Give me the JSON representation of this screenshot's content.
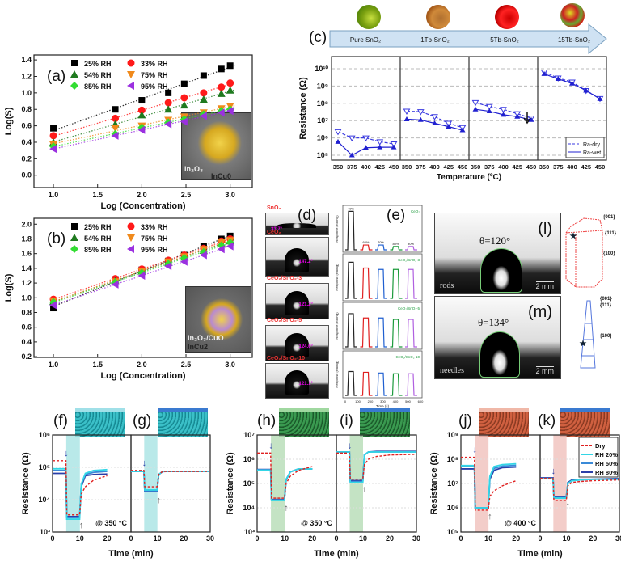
{
  "panels": {
    "a": "(a)",
    "b": "(b)",
    "c": "(c)",
    "d": "(d)",
    "e": "(e)",
    "f": "(f)",
    "g": "(g)",
    "h": "(h)",
    "i": "(i)",
    "j": "(j)",
    "k": "(k)",
    "l": "(l)",
    "m": "(m)"
  },
  "insets": {
    "a": {
      "material": "In₂O₃",
      "name": "InCu0"
    },
    "b": {
      "material": "In₂O₃/CuO",
      "name": "InCu2"
    }
  },
  "arrow_stages": [
    "Pure SnO₂",
    "1Tb-SnO₂",
    "5Tb-SnO₂",
    "15Tb-SnO₂"
  ],
  "stage_colors": [
    "#9cc21a",
    "#c87a2a",
    "#e01010",
    "#d8c020"
  ],
  "contact_angle_d": {
    "samples": [
      {
        "label": "SnO₂",
        "angle": "33.7°"
      },
      {
        "label": "CeO₂",
        "angle": "147.2°"
      },
      {
        "label": "CeO₂/SnO₂-3",
        "angle": "121.2°"
      },
      {
        "label": "CeO₂/SnO₂-5",
        "angle": "124.6°"
      },
      {
        "label": "CeO₂/SnO₂-10",
        "angle": "121.1°"
      }
    ]
  },
  "panel_e": {
    "ylabel": "Response (Ra/Rg)",
    "xlabel": "Time (s)",
    "x_ticks": [
      "0",
      "100",
      "200",
      "300",
      "400",
      "500",
      "600"
    ],
    "rh_labels": [
      "40%",
      "60%",
      "70%",
      "80%",
      "90%"
    ],
    "pulse_colors": [
      "#222222",
      "#e02020",
      "#1f5fd0",
      "#1a9a3a",
      "#b060e0"
    ],
    "subplots": [
      {
        "label": "CeO₂",
        "pulses": [
          40,
          5,
          5,
          3.5,
          3.5
        ]
      },
      {
        "label": "CeO₂/SnO₂-3",
        "pulses": [
          25,
          21,
          20,
          20,
          20
        ]
      },
      {
        "label": "CeO₂/SnO₂-5",
        "pulses": [
          23,
          20,
          20,
          19,
          19
        ]
      },
      {
        "label": "CeO₂/SnO₂-10",
        "pulses": [
          16.5,
          16,
          15.5,
          15,
          15
        ]
      }
    ]
  },
  "wetting": {
    "l": {
      "theta": "θ=120°",
      "caption": "rods",
      "scale": "2 mm"
    },
    "m": {
      "theta": "θ=134°",
      "caption": "needles",
      "scale": "2 mm"
    },
    "facets": [
      "{001}",
      "{111}",
      "{100}"
    ]
  },
  "temperature_labels": {
    "f": "@ 350 °C",
    "h": "@ 350 °C",
    "j": "@ 400 °C"
  },
  "chart_data": [
    {
      "id": "a",
      "type": "scatter",
      "xlabel": "Log (Concentration)",
      "ylabel": "Log(S)",
      "xlim": [
        0.78,
        3.25
      ],
      "ylim": [
        -0.15,
        1.46
      ],
      "x_ticks": [
        1.0,
        1.5,
        2.0,
        2.5,
        3.0
      ],
      "y_ticks": [
        0.0,
        0.2,
        0.4,
        0.6,
        0.8,
        1.0,
        1.2,
        1.4
      ],
      "x": [
        1.0,
        1.7,
        2.0,
        2.3,
        2.48,
        2.7,
        2.9,
        3.0
      ],
      "legend": "top-left",
      "fit_lines": "dotted",
      "series": [
        {
          "name": "25% RH",
          "color": "#000000",
          "marker": "square",
          "values": [
            0.57,
            0.8,
            0.91,
            1.0,
            1.11,
            1.21,
            1.29,
            1.33
          ]
        },
        {
          "name": "33% RH",
          "color": "#ff1a1a",
          "marker": "circle",
          "values": [
            0.48,
            0.69,
            0.79,
            0.88,
            0.94,
            1.0,
            1.07,
            1.12
          ]
        },
        {
          "name": "54% RH",
          "color": "#1f7a1f",
          "marker": "triangle-up",
          "values": [
            0.4,
            0.62,
            0.73,
            0.8,
            0.85,
            0.92,
            0.99,
            1.03
          ]
        },
        {
          "name": "75% RH",
          "color": "#f08a1c",
          "marker": "triangle-down",
          "values": [
            0.37,
            0.57,
            0.6,
            0.67,
            0.71,
            0.76,
            0.81,
            0.84
          ]
        },
        {
          "name": "85% RH",
          "color": "#33dd33",
          "marker": "diamond",
          "values": [
            0.35,
            0.5,
            0.58,
            0.64,
            0.68,
            0.74,
            0.78,
            0.8
          ]
        },
        {
          "name": "95% RH",
          "color": "#9b30e0",
          "marker": "triangle-left",
          "values": [
            0.32,
            0.48,
            0.55,
            0.62,
            0.65,
            0.72,
            0.76,
            0.78
          ]
        }
      ]
    },
    {
      "id": "b",
      "type": "scatter",
      "xlabel": "Log (Concentration)",
      "ylabel": "Log(S)",
      "xlim": [
        0.78,
        3.25
      ],
      "ylim": [
        0.19,
        2.08
      ],
      "x_ticks": [
        1.0,
        1.5,
        2.0,
        2.5,
        3.0
      ],
      "y_ticks": [
        0.2,
        0.4,
        0.6,
        0.8,
        1.0,
        1.2,
        1.4,
        1.6,
        1.8,
        2.0
      ],
      "x": [
        1.0,
        1.7,
        2.0,
        2.3,
        2.48,
        2.7,
        2.9,
        3.0
      ],
      "legend": "top-left",
      "fit_lines": "dotted",
      "series": [
        {
          "name": "25% RH",
          "color": "#000000",
          "marker": "square",
          "values": [
            0.86,
            1.25,
            1.38,
            1.5,
            1.58,
            1.7,
            1.8,
            1.84
          ]
        },
        {
          "name": "33% RH",
          "color": "#ff1a1a",
          "marker": "circle",
          "values": [
            0.98,
            1.26,
            1.39,
            1.51,
            1.58,
            1.67,
            1.77,
            1.8
          ]
        },
        {
          "name": "54% RH",
          "color": "#1f7a1f",
          "marker": "triangle-up",
          "values": [
            0.95,
            1.23,
            1.36,
            1.48,
            1.55,
            1.64,
            1.74,
            1.77
          ]
        },
        {
          "name": "75% RH",
          "color": "#f08a1c",
          "marker": "triangle-down",
          "values": [
            0.96,
            1.22,
            1.36,
            1.49,
            1.56,
            1.66,
            1.75,
            1.78
          ]
        },
        {
          "name": "85% RH",
          "color": "#33dd33",
          "marker": "diamond",
          "values": [
            0.94,
            1.21,
            1.34,
            1.46,
            1.54,
            1.62,
            1.71,
            1.75
          ]
        },
        {
          "name": "95% RH",
          "color": "#9b30e0",
          "marker": "triangle-left",
          "values": [
            0.9,
            1.18,
            1.3,
            1.43,
            1.49,
            1.58,
            1.66,
            1.7
          ]
        }
      ]
    },
    {
      "id": "c",
      "type": "line",
      "xlabel": "Temperature (ºC)",
      "ylabel": "Resistance (Ω)",
      "y_scale": "log",
      "ylim": [
        100000.0,
        10000000000.0
      ],
      "y_tick_labels": [
        "10⁵",
        "10⁶",
        "10⁷",
        "10⁸",
        "10⁹",
        "10¹⁰"
      ],
      "x": [
        350,
        375,
        400,
        425,
        450
      ],
      "grid": "horizontal dashed",
      "legend": "bottom-right",
      "series_style": [
        {
          "name": "Ra-dry",
          "color": "#3a3ae0",
          "marker": "triangle-down-open",
          "line": "dashed"
        },
        {
          "name": "Ra-wet",
          "color": "#2020d0",
          "marker": "triangle-up",
          "line": "solid"
        }
      ],
      "subpanels": [
        {
          "stage": "Pure SnO₂",
          "dry": [
            2300000.0,
            1000000.0,
            1000000.0,
            600000.0,
            450000.0
          ],
          "wet": [
            600000.0,
            100000.0,
            270000.0,
            290000.0,
            290000.0
          ]
        },
        {
          "stage": "1Tb-SnO₂",
          "dry": [
            35000000.0,
            33000000.0,
            17000000.0,
            7000000.0,
            4000000.0
          ],
          "wet": [
            12000000.0,
            11000000.0,
            7000000.0,
            4500000.0,
            2800000.0
          ]
        },
        {
          "stage": "5Tb-SnO₂",
          "dry": [
            110000000.0,
            65000000.0,
            45000000.0,
            25000000.0,
            14000000.0
          ],
          "wet": [
            45000000.0,
            35000000.0,
            22000000.0,
            17000000.0,
            11000000.0
          ]
        },
        {
          "stage": "15Tb-SnO₂",
          "dry": [
            6500000000.0,
            2900000000.0,
            1700000000.0,
            550000000.0,
            190000000.0
          ],
          "wet": [
            5000000000.0,
            2600000000.0,
            1400000000.0,
            550000000.0,
            180000000.0
          ]
        }
      ]
    },
    {
      "id": "f-k",
      "type": "line",
      "xlabel": "Time (min)",
      "ylabel": "Resistance (Ω)",
      "y_scale": "log",
      "shaded_interval": [
        5,
        10
      ],
      "legend": [
        "Dry",
        "RH 20%",
        "RH 50%",
        "RH 80%"
      ],
      "legend_placement": "top-right (panel k)",
      "series_colors": [
        "#e02020",
        "#33d6e6",
        "#3a8ad8",
        "#2a3fa8"
      ],
      "series_dash": [
        "dashed",
        "solid",
        "solid",
        "solid"
      ],
      "t": [
        0,
        4.9,
        5.2,
        9.9,
        10.5,
        12,
        15,
        20,
        30
      ],
      "groups": [
        {
          "ylim": [
            1000.0,
            1000000.0
          ],
          "y_tick_labels": [
            "10³",
            "10⁴",
            "10⁵",
            "10⁶"
          ],
          "shade": "#a8e4e4",
          "left": {
            "panel": "f",
            "xlim": [
              0,
              28.7
            ],
            "x_ticks": [
              0,
              10,
              20
            ],
            "series": [
              [
                160000.0,
                160000.0,
                3400.0,
                3400.0,
                15000.0,
                25000.0,
                40000.0,
                55000.0,
                70000.0
              ],
              [
                90000.0,
                90000.0,
                2500.0,
                2500.0,
                30000.0,
                65000.0,
                80000.0,
                85000.0,
                90000.0
              ],
              [
                80000.0,
                80000.0,
                2800.0,
                2800.0,
                30000.0,
                60000.0,
                70000.0,
                75000.0,
                80000.0
              ],
              [
                65000.0,
                65000.0,
                3000.0,
                3000.0,
                25000.0,
                55000.0,
                60000.0,
                62000.0,
                65000.0
              ]
            ]
          },
          "right": {
            "panel": "g",
            "xlim": [
              0,
              30
            ],
            "x_ticks": [
              0,
              10,
              20,
              30
            ],
            "series": [
              [
                80000.0,
                80000.0,
                25000.0,
                25000.0,
                60000.0,
                75000.0,
                75000.0,
                75000.0,
                75000.0
              ],
              [
                75000.0,
                75000.0,
                20000.0,
                20000.0,
                60000.0,
                75000.0,
                75000.0,
                75000.0,
                75000.0
              ],
              [
                75000.0,
                75000.0,
                19000.0,
                19000.0,
                60000.0,
                75000.0,
                75000.0,
                75000.0,
                75000.0
              ],
              [
                75000.0,
                75000.0,
                18000.0,
                18000.0,
                60000.0,
                74000.0,
                75000.0,
                75000.0,
                75000.0
              ]
            ]
          }
        },
        {
          "ylim": [
            1000.0,
            10000000.0
          ],
          "y_tick_labels": [
            "10³",
            "10⁴",
            "10⁵",
            "10⁶",
            "10⁷"
          ],
          "shade": "#b5dcb5",
          "left": {
            "panel": "h",
            "xlim": [
              0,
              28.7
            ],
            "x_ticks": [
              0,
              10,
              20
            ],
            "series": [
              [
                1800000.0,
                1800000.0,
                25000.0,
                25000.0,
                100000.0,
                200000.0,
                350000.0,
                500000.0,
                900000.0
              ],
              [
                350000.0,
                350000.0,
                20000.0,
                20000.0,
                150000.0,
                300000.0,
                400000.0,
                400000.0,
                400000.0
              ],
              [
                370000.0,
                370000.0,
                21000.0,
                21000.0,
                150000.0,
                300000.0,
                400000.0,
                400000.0,
                400000.0
              ],
              [
                380000.0,
                380000.0,
                22000.0,
                22000.0,
                140000.0,
                300000.0,
                400000.0,
                400000.0,
                400000.0
              ]
            ]
          },
          "right": {
            "panel": "i",
            "xlim": [
              0,
              30
            ],
            "x_ticks": [
              0,
              10,
              20,
              30
            ],
            "series": [
              [
                1800000.0,
                1800000.0,
                150000.0,
                150000.0,
                600000.0,
                1000000.0,
                1300000.0,
                1500000.0,
                1600000.0
              ],
              [
                2000000.0,
                2000000.0,
                110000.0,
                110000.0,
                1500000.0,
                2000000.0,
                2000000.0,
                2000000.0,
                2000000.0
              ],
              [
                2000000.0,
                2000000.0,
                120000.0,
                120000.0,
                1500000.0,
                2000000.0,
                2000000.0,
                2000000.0,
                2000000.0
              ],
              [
                2000000.0,
                2000000.0,
                130000.0,
                130000.0,
                1500000.0,
                2000000.0,
                2100000.0,
                2100000.0,
                2100000.0
              ]
            ]
          }
        },
        {
          "ylim": [
            100000.0,
            1000000000.0
          ],
          "y_tick_labels": [
            "10⁵",
            "10⁶",
            "10⁷",
            "10⁸",
            "10⁹"
          ],
          "shade": "#f0c0bc",
          "left": {
            "panel": "j",
            "xlim": [
              0,
              28.7
            ],
            "x_ticks": [
              0,
              10,
              20
            ],
            "series": [
              [
                120000000.0,
                120000000.0,
                800000.0,
                800000.0,
                3000000.0,
                5000000.0,
                8000000.0,
                13000000.0,
                24000000.0
              ],
              [
                55000000.0,
                55000000.0,
                1000000.0,
                1000000.0,
                20000000.0,
                50000000.0,
                60000000.0,
                65000000.0,
                70000000.0
              ],
              [
                50000000.0,
                50000000.0,
                1000000.0,
                1000000.0,
                18000000.0,
                42000000.0,
                52000000.0,
                56000000.0,
                60000000.0
              ],
              [
                40000000.0,
                40000000.0,
                1000000.0,
                1000000.0,
                15000000.0,
                35000000.0,
                45000000.0,
                48000000.0,
                50000000.0
              ]
            ]
          },
          "right": {
            "panel": "k",
            "xlim": [
              0,
              30
            ],
            "x_ticks": [
              0,
              10,
              20,
              30
            ],
            "series": [
              [
                16000000.0,
                16000000.0,
                2000000.0,
                2000000.0,
                8000000.0,
                11000000.0,
                12000000.0,
                13000000.0,
                14000000.0
              ],
              [
                16000000.0,
                16000000.0,
                2500000.0,
                2500000.0,
                10000000.0,
                13000000.0,
                14000000.0,
                15000000.0,
                15000000.0
              ],
              [
                16000000.0,
                16000000.0,
                2600000.0,
                2600000.0,
                10000000.0,
                13000000.0,
                14000000.0,
                15000000.0,
                15000000.0
              ],
              [
                17000000.0,
                17000000.0,
                2800000.0,
                2800000.0,
                11000000.0,
                14000000.0,
                15000000.0,
                15000000.0,
                16000000.0
              ]
            ]
          }
        }
      ]
    }
  ]
}
